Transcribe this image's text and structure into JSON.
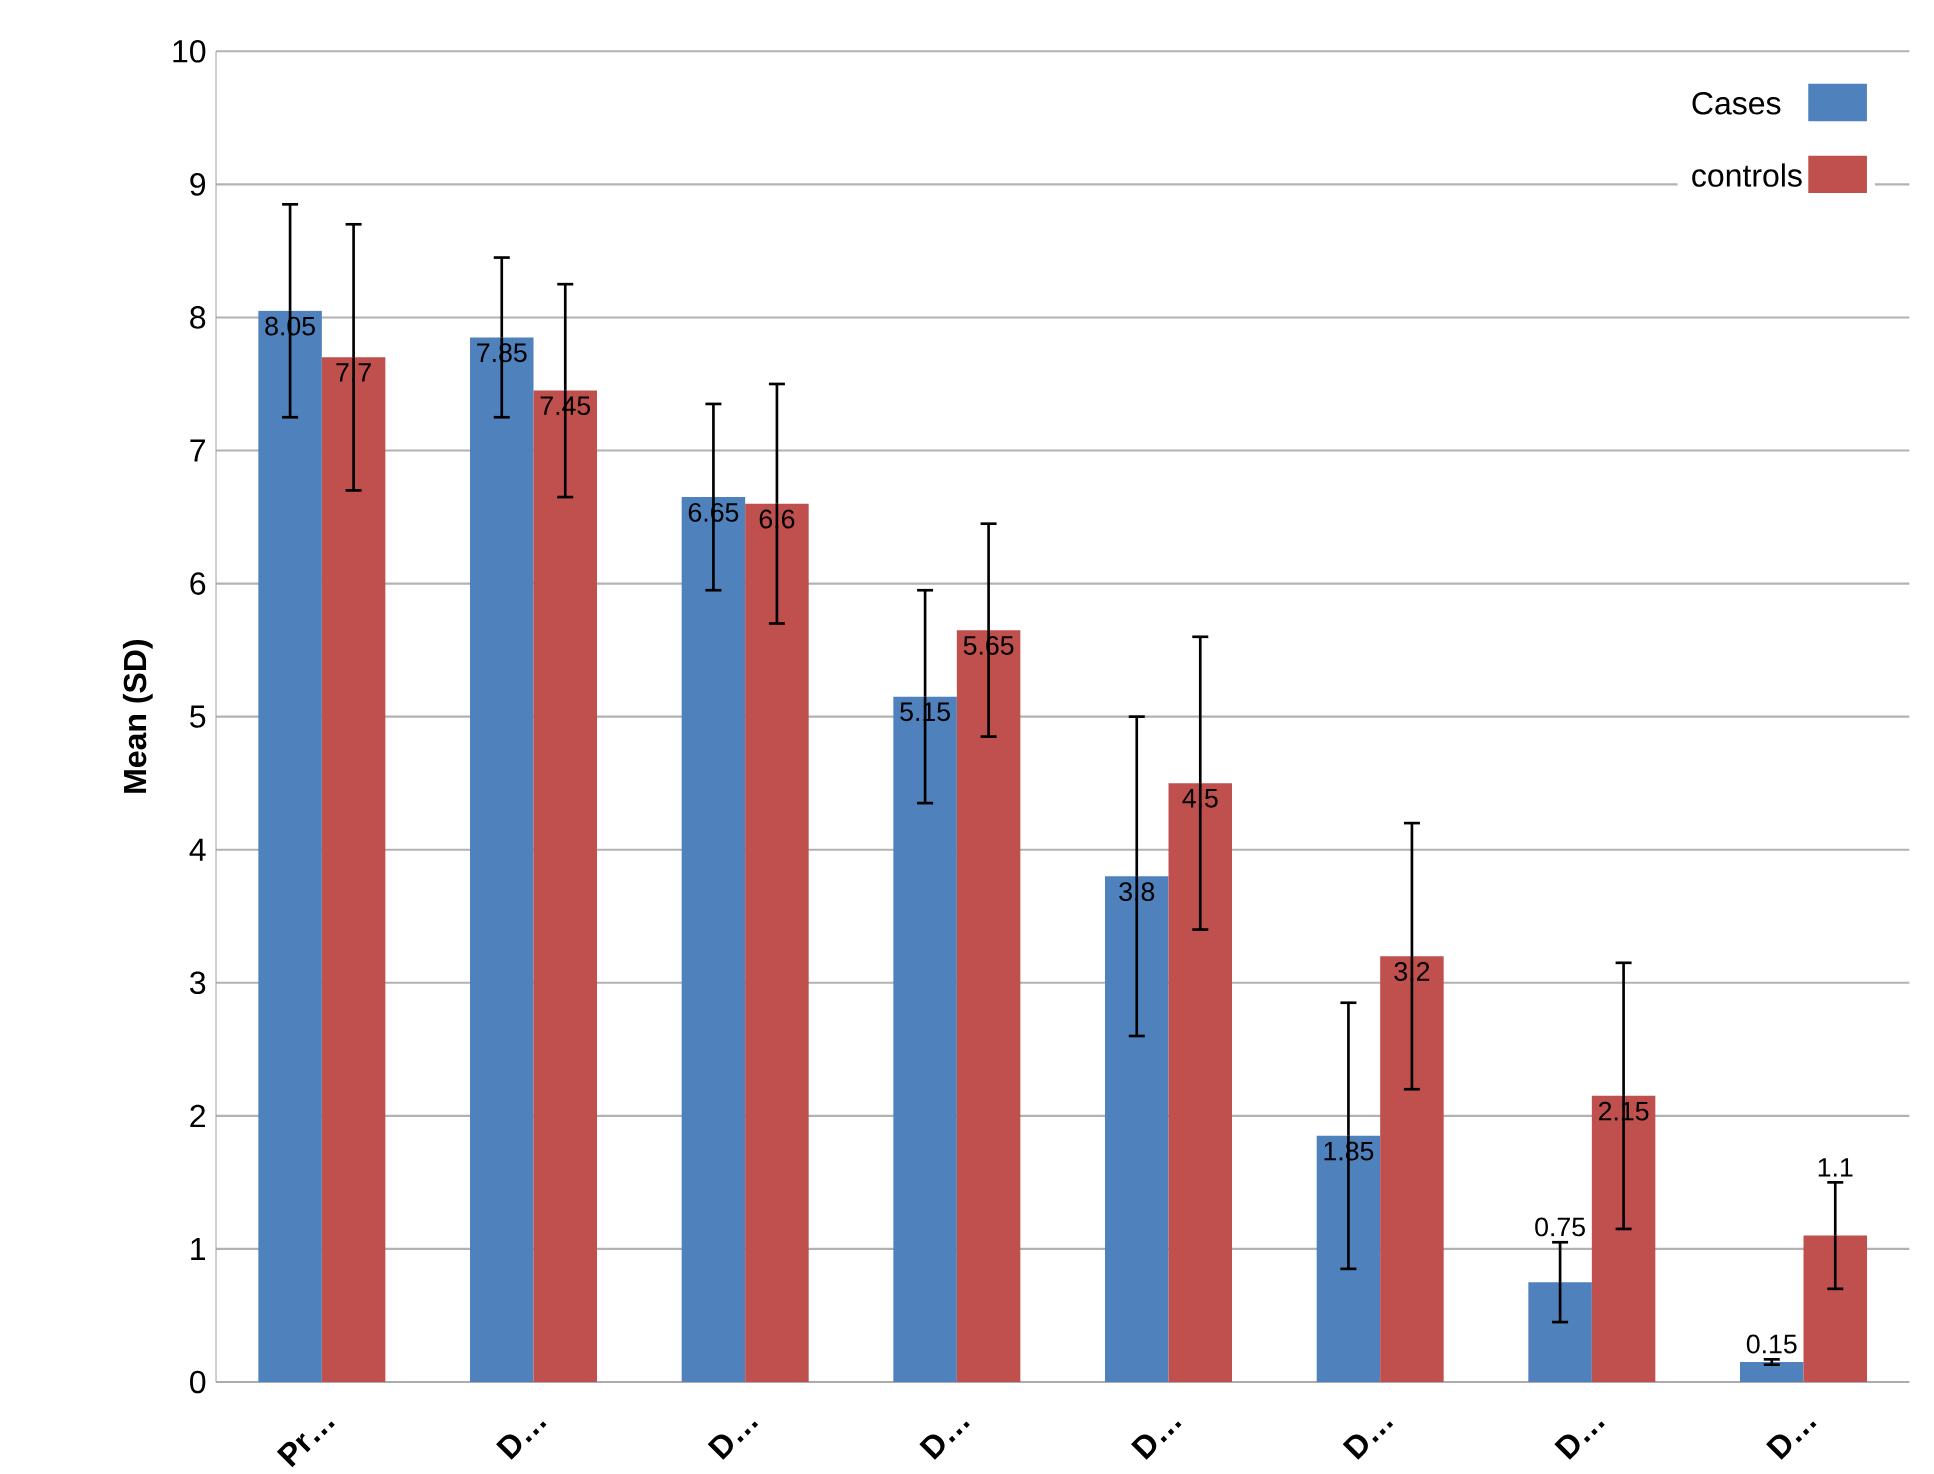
{
  "chart_data": {
    "type": "bar",
    "ylabel": "Mean (SD)",
    "categories": [
      "Pr…",
      "D…",
      "D…",
      "D…",
      "D…",
      "D…",
      "D…",
      "D…"
    ],
    "series": [
      {
        "name": "Cases",
        "color": "#4f81bd",
        "values": [
          8.05,
          7.85,
          6.65,
          5.15,
          3.8,
          1.85,
          0.75,
          0.15
        ],
        "errors": [
          0.8,
          0.6,
          0.7,
          0.8,
          1.2,
          1.0,
          0.3,
          0.02
        ]
      },
      {
        "name": "controls",
        "color": "#c0504d",
        "values": [
          7.7,
          7.45,
          6.6,
          5.65,
          4.5,
          3.2,
          2.15,
          1.1
        ],
        "errors": [
          1.0,
          0.8,
          0.9,
          0.8,
          1.1,
          1.0,
          1.0,
          0.4
        ]
      }
    ],
    "ylim": [
      0,
      10
    ],
    "yticks": [
      0,
      1,
      2,
      3,
      4,
      5,
      6,
      7,
      8,
      9,
      10
    ],
    "grid": "y",
    "legend": "top right",
    "data_labels": true
  }
}
